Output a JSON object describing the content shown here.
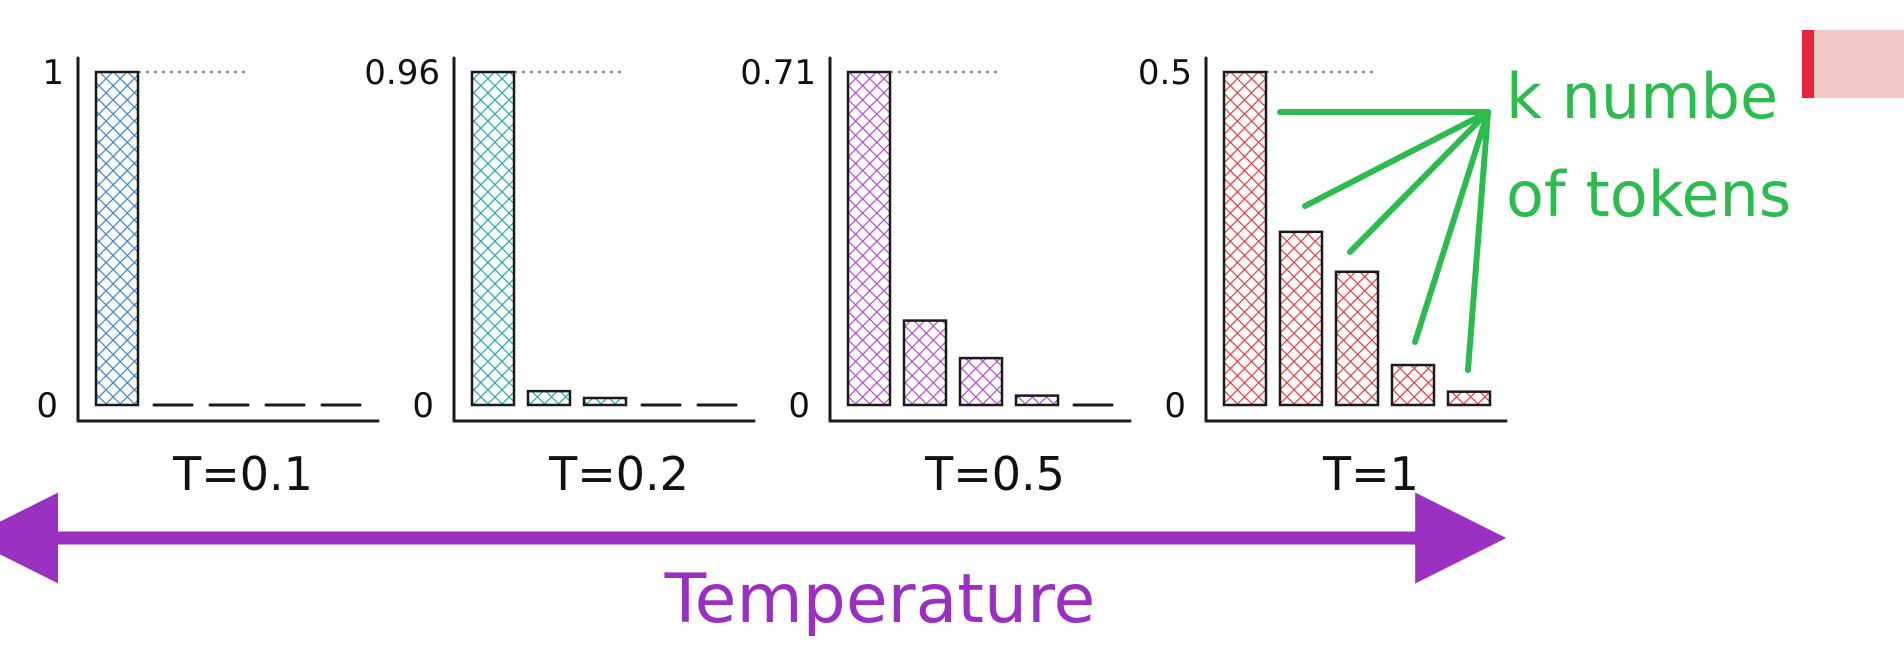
{
  "chart_data": {
    "type": "bar",
    "title": "",
    "xlabel": "Temperature",
    "ylabel": "",
    "colors": {
      "blue": "#3d7fd3",
      "teal": "#27a3ad",
      "purple": "#b149d1",
      "red": "#e23b3b",
      "green": "#2dbb4f",
      "temperature_arrow": "#9a30c0"
    },
    "panels": [
      {
        "temperature": "T=0.1",
        "color_key": "blue",
        "y_top_label": "1",
        "y_bottom_label": "0",
        "values": [
          1,
          0,
          0,
          0,
          0
        ],
        "ylim": [
          0,
          1
        ]
      },
      {
        "temperature": "T=0.2",
        "color_key": "teal",
        "y_top_label": "0.96",
        "y_bottom_label": "0",
        "values": [
          0.96,
          0.04,
          0.02,
          0,
          0
        ],
        "ylim": [
          0,
          0.96
        ]
      },
      {
        "temperature": "T=0.5",
        "color_key": "purple",
        "y_top_label": "0.71",
        "y_bottom_label": "0",
        "values": [
          0.71,
          0.18,
          0.1,
          0.02,
          0
        ],
        "ylim": [
          0,
          0.71
        ]
      },
      {
        "temperature": "T=1",
        "color_key": "red",
        "y_top_label": "0.5",
        "y_bottom_label": "0",
        "values": [
          0.5,
          0.26,
          0.2,
          0.06,
          0.02
        ],
        "ylim": [
          0,
          0.5
        ]
      }
    ],
    "annotation": {
      "lines": [
        "k numbe",
        "of tokens"
      ],
      "color": "#2dbb4f"
    }
  }
}
